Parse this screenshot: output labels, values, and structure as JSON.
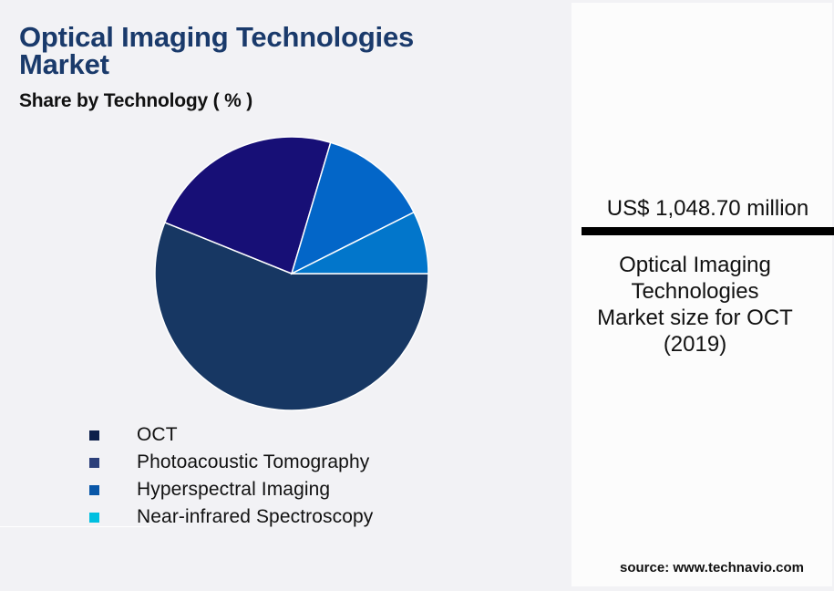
{
  "header": {
    "title": "Optical Imaging Technologies Market",
    "subtitle": "Share by Technology ( % )"
  },
  "legend": {
    "items": [
      {
        "label": "OCT",
        "color": "#0d1f4a"
      },
      {
        "label": "Photoacoustic Tomography",
        "color": "#2c3f7a"
      },
      {
        "label": "Hyperspectral Imaging",
        "color": "#0957a8"
      },
      {
        "label": "Near-infrared Spectroscopy",
        "color": "#00bfe0"
      }
    ]
  },
  "panel": {
    "value": "US$ 1,048.70 million",
    "description_lines": [
      "Optical Imaging",
      "Technologies",
      "Market size for OCT",
      "(2019)"
    ]
  },
  "source": "source: www.technavio.com",
  "chart_data": {
    "type": "pie",
    "title": "Optical Imaging Technologies Market",
    "subtitle": "Share by Technology ( % )",
    "categories": [
      "OCT",
      "Photoacoustic Tomography",
      "Hyperspectral Imaging",
      "Near-infrared Spectroscopy"
    ],
    "values": [
      56.1,
      23.5,
      13.0,
      7.4
    ],
    "slice_colors": [
      "#173763",
      "#170f76",
      "#0366c8",
      "#0276cb"
    ],
    "start_angle_deg": 0,
    "direction": "clockwise",
    "legend_position": "bottom",
    "annotation": "US$ 1,048.70 million — Optical Imaging Technologies Market size for OCT (2019)"
  }
}
